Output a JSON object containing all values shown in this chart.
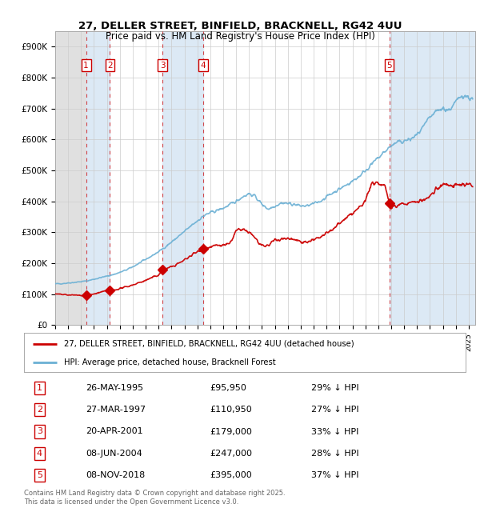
{
  "title_line1": "27, DELLER STREET, BINFIELD, BRACKNELL, RG42 4UU",
  "title_line2": "Price paid vs. HM Land Registry's House Price Index (HPI)",
  "ylim": [
    0,
    950000
  ],
  "xlim_start": 1993.0,
  "xlim_end": 2025.5,
  "sale_dates_num": [
    1995.39,
    1997.24,
    2001.3,
    2004.44,
    2018.85
  ],
  "sale_prices": [
    95950,
    110950,
    179000,
    247000,
    395000
  ],
  "sale_labels": [
    "1",
    "2",
    "3",
    "4",
    "5"
  ],
  "hpi_color": "#6ab0d4",
  "price_color": "#cc0000",
  "sold_region_color": "#dce9f5",
  "legend_entries": [
    "27, DELLER STREET, BINFIELD, BRACKNELL, RG42 4UU (detached house)",
    "HPI: Average price, detached house, Bracknell Forest"
  ],
  "table_rows": [
    [
      "1",
      "26-MAY-1995",
      "£95,950",
      "29% ↓ HPI"
    ],
    [
      "2",
      "27-MAR-1997",
      "£110,950",
      "27% ↓ HPI"
    ],
    [
      "3",
      "20-APR-2001",
      "£179,000",
      "33% ↓ HPI"
    ],
    [
      "4",
      "08-JUN-2004",
      "£247,000",
      "28% ↓ HPI"
    ],
    [
      "5",
      "08-NOV-2018",
      "£395,000",
      "37% ↓ HPI"
    ]
  ],
  "footer_text": "Contains HM Land Registry data © Crown copyright and database right 2025.\nThis data is licensed under the Open Government Licence v3.0.",
  "yticks": [
    0,
    100000,
    200000,
    300000,
    400000,
    500000,
    600000,
    700000,
    800000,
    900000
  ],
  "ytick_labels": [
    "£0",
    "£100K",
    "£200K",
    "£300K",
    "£400K",
    "£500K",
    "£600K",
    "£700K",
    "£800K",
    "£900K"
  ]
}
